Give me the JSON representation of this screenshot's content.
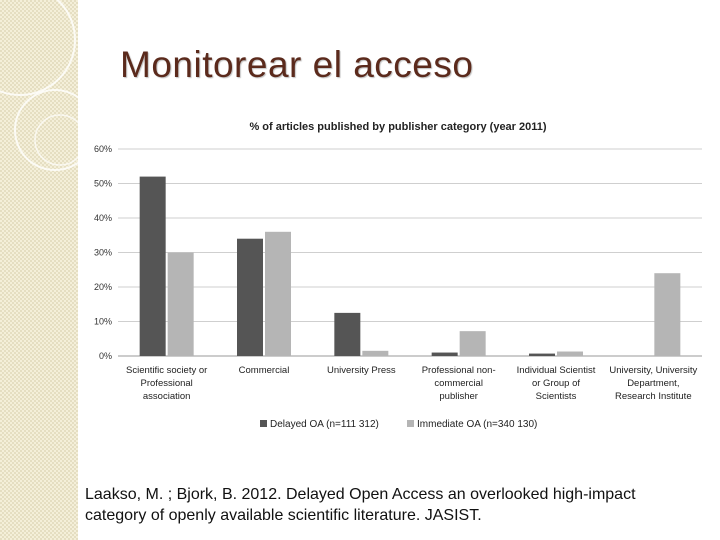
{
  "slide": {
    "title": "Monitorear el acceso",
    "citation": "Laakso, M. ; Bjork, B.  2012.  Delayed Open Access an overlooked high-impact category of  openly available scientific literature. JASIST."
  },
  "colors": {
    "title": "#5b2a1c",
    "delayed": "#555555",
    "immediate": "#b5b5b5",
    "strip": "#f4efd9"
  },
  "chart_data": {
    "type": "bar",
    "title": "% of articles published by publisher category (year 2011)",
    "categories": [
      [
        "Scientific society or",
        "Professional",
        "association"
      ],
      [
        "Commercial"
      ],
      [
        "University Press"
      ],
      [
        "Professional non-",
        "commercial",
        "publisher"
      ],
      [
        "Individual Scientist",
        "or Group of",
        "Scientists"
      ],
      [
        "University, University",
        "Department,",
        "Research Institute"
      ]
    ],
    "series": [
      {
        "name": "Delayed OA (n=111 312)",
        "color": "#555555",
        "values": [
          52,
          34,
          12.5,
          1,
          0.7,
          0
        ]
      },
      {
        "name": "Immediate OA (n=340 130)",
        "color": "#b5b5b5",
        "values": [
          30,
          36,
          1.5,
          7.2,
          1.3,
          24
        ]
      }
    ],
    "ylim": [
      0,
      60
    ],
    "yticks": [
      "0%",
      "10%",
      "20%",
      "30%",
      "40%",
      "50%",
      "60%"
    ],
    "grid": true,
    "legend": "bottom"
  }
}
